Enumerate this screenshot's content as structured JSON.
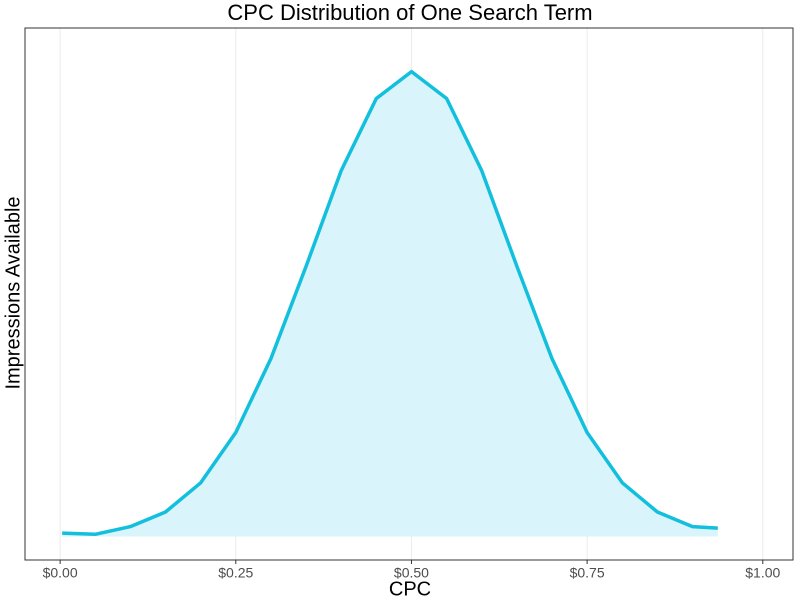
{
  "chart_data": {
    "type": "area",
    "title": "CPC Distribution of One Search Term",
    "xlabel": "CPC",
    "ylabel": "Impressions Available",
    "x": [
      0.003,
      0.05,
      0.1,
      0.15,
      0.2,
      0.25,
      0.3,
      0.35,
      0.4,
      0.45,
      0.5,
      0.55,
      0.6,
      0.65,
      0.7,
      0.75,
      0.8,
      0.85,
      0.9,
      0.936
    ],
    "values": [
      0.02,
      0.013,
      0.059,
      0.146,
      0.32,
      0.62,
      1.06,
      1.61,
      2.18,
      2.61,
      2.77,
      2.61,
      2.18,
      1.61,
      1.06,
      0.62,
      0.32,
      0.146,
      0.059,
      0.05
    ],
    "color": "#12bfdc",
    "fill": "#d9f4fa",
    "xlim": [
      -0.05,
      1.043
    ],
    "ylim": [
      -0.14,
      3.03
    ],
    "xticks": [
      {
        "value": 0,
        "label": "$0.00"
      },
      {
        "value": 0.25,
        "label": "$0.25"
      },
      {
        "value": 0.5,
        "label": "$0.50"
      },
      {
        "value": 0.75,
        "label": "$0.75"
      },
      {
        "value": 1,
        "label": "$1.00"
      }
    ],
    "grid": true
  }
}
